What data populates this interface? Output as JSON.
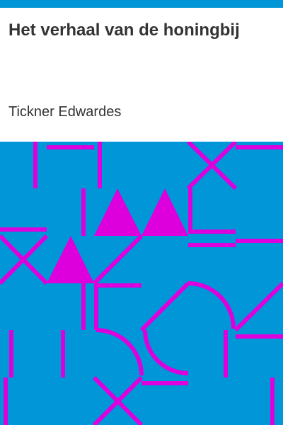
{
  "book": {
    "title": "Het verhaal van de honingbij",
    "author": "Tickner Edwardes"
  },
  "colors": {
    "stripe": "#0096d8",
    "pattern_background": "#0096d8",
    "pattern_foreground": "#dd00dd",
    "text": "#333333"
  }
}
